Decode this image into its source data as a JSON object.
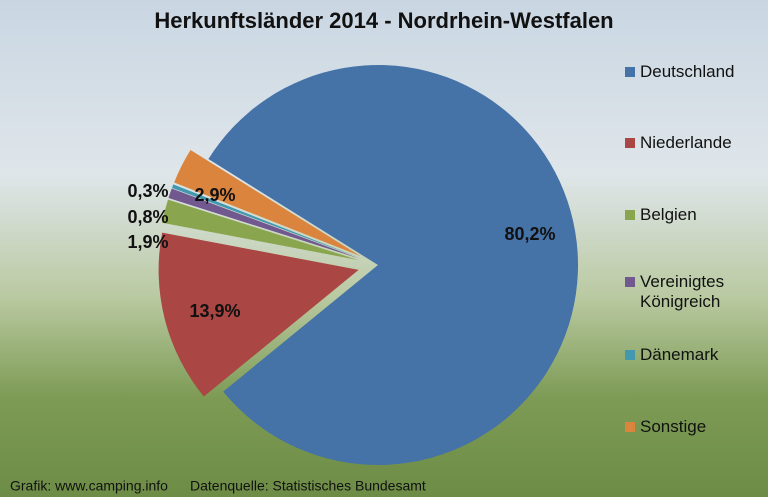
{
  "chart_data": {
    "type": "pie",
    "title": "Herkunftsländer 2014 - Nordrhein-Westfalen",
    "categories": [
      "Deutschland",
      "Niederlande",
      "Belgien",
      "Vereinigtes Königreich",
      "Dänemark",
      "Sonstige"
    ],
    "values": [
      80.2,
      13.9,
      1.9,
      0.8,
      0.3,
      2.9
    ],
    "value_labels": [
      "80,2%",
      "13,9%",
      "1,9%",
      "0,8%",
      "0,3%",
      "2,9%"
    ],
    "colors": [
      "#4572a7",
      "#aa4643",
      "#89a54e",
      "#71588f",
      "#4198af",
      "#db843d"
    ],
    "legend": "right",
    "footer": [
      "Grafik: www.camping.info",
      "Datenquelle: Statistisches Bundesamt"
    ]
  }
}
